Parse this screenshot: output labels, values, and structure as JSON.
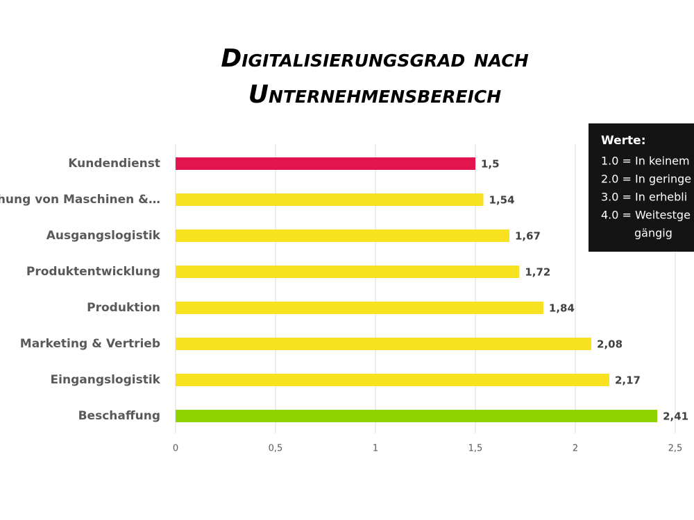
{
  "chart_data": {
    "type": "hbar",
    "title": [
      "Digitalisierungsgrad nach",
      "Unternehmensbereich"
    ],
    "categories": [
      "Kundendienst",
      "achung von Maschinen &…",
      "Ausgangslogistik",
      "Produktentwicklung",
      "Produktion",
      "Marketing & Vertrieb",
      "Eingangslogistik",
      "Beschaffung"
    ],
    "values": [
      1.5,
      1.54,
      1.67,
      1.72,
      1.84,
      2.08,
      2.17,
      2.41
    ],
    "value_labels": [
      "1,5",
      "1,54",
      "1,67",
      "1,72",
      "1,84",
      "2,08",
      "2,17",
      "2,41"
    ],
    "colors": [
      "#e2154f",
      "#f8e11f",
      "#f8e11f",
      "#f8e11f",
      "#f8e11f",
      "#f8e11f",
      "#f8e11f",
      "#8fd400"
    ],
    "xlim": [
      0,
      2.5
    ],
    "xticks": [
      0,
      {
        "value": 0.5,
        "label": "0,5"
      },
      1,
      {
        "value": 1.5,
        "label": "1,5"
      },
      2,
      {
        "value": 2.5,
        "label": "2,5"
      }
    ],
    "grid": true,
    "info_box": {
      "title": "Werte:",
      "lines": [
        "1.0 = In keinem",
        "2.0 = In geringe",
        "3.0 = In erhebli",
        "4.0 = Weitestge",
        "gängig"
      ]
    }
  }
}
